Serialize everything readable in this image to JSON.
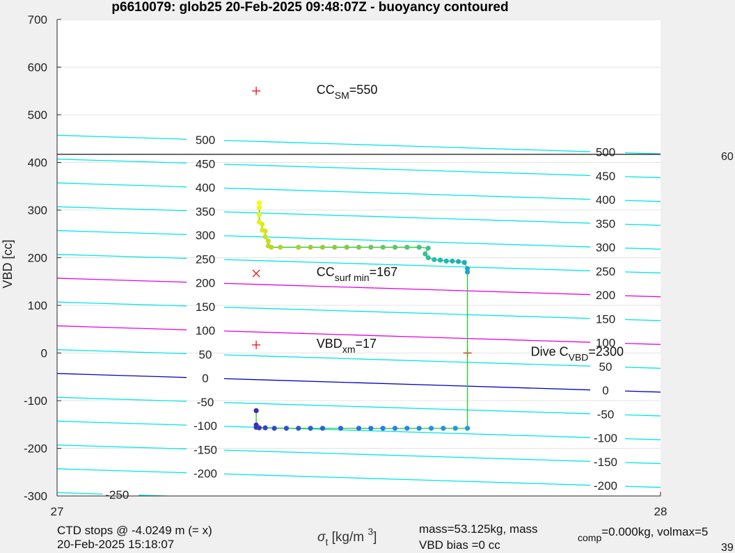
{
  "chart_data": {
    "type": "scatter",
    "title": "p6610079: glob25 20-Feb-2025 09:48:07Z - buoyancy contoured",
    "ylabel": "VBD [cc]",
    "xlabel_main": "σ",
    "xlabel_sub": "t",
    "xlabel_unit": "[kg/m",
    "xlabel_sup": "3",
    "xlabel_close": "]",
    "xlim": [
      27,
      28
    ],
    "ylim": [
      -300,
      700
    ],
    "x_ticks": [
      {
        "v": 27,
        "label": "27"
      },
      {
        "v": 28,
        "label": "28"
      }
    ],
    "y_ticks": [
      {
        "v": 700,
        "label": "700"
      },
      {
        "v": 600,
        "label": "600"
      },
      {
        "v": 500,
        "label": "500"
      },
      {
        "v": 400,
        "label": "400"
      },
      {
        "v": 300,
        "label": "300"
      },
      {
        "v": 200,
        "label": "200"
      },
      {
        "v": 100,
        "label": "100"
      },
      {
        "v": 0,
        "label": "0"
      },
      {
        "v": -100,
        "label": "-100"
      },
      {
        "v": -200,
        "label": "-200"
      },
      {
        "v": -300,
        "label": "-300"
      }
    ],
    "grid": true,
    "hline_vbd": 417,
    "contours": [
      {
        "level": 500,
        "label": "500",
        "y_left": 457,
        "y_right": 418,
        "color": "#00e5e5",
        "label_left": true,
        "label_right": true
      },
      {
        "level": 450,
        "label": "450",
        "y_left": 407,
        "y_right": 368,
        "color": "#00e5e5",
        "label_left": true,
        "label_right": true
      },
      {
        "level": 400,
        "label": "400",
        "y_left": 357,
        "y_right": 318,
        "color": "#00e5e5",
        "label_left": true,
        "label_right": true
      },
      {
        "level": 350,
        "label": "350",
        "y_left": 307,
        "y_right": 268,
        "color": "#00e5e5",
        "label_left": true,
        "label_right": true
      },
      {
        "level": 300,
        "label": "300",
        "y_left": 257,
        "y_right": 218,
        "color": "#00e5e5",
        "label_left": true,
        "label_right": true
      },
      {
        "level": 250,
        "label": "250",
        "y_left": 207,
        "y_right": 168,
        "color": "#00e5e5",
        "label_left": true,
        "label_right": true
      },
      {
        "level": 200,
        "label": "200",
        "y_left": 157,
        "y_right": 118,
        "color": "#e600e6",
        "label_left": true,
        "label_right": true
      },
      {
        "level": 150,
        "label": "150",
        "y_left": 107,
        "y_right": 68,
        "color": "#00e5e5",
        "label_left": true,
        "label_right": true
      },
      {
        "level": 100,
        "label": "100",
        "y_left": 57,
        "y_right": 18,
        "color": "#e600e6",
        "label_left": true,
        "label_right": true
      },
      {
        "level": 50,
        "label": "50",
        "y_left": 7,
        "y_right": -32,
        "color": "#00e5e5",
        "label_left": true,
        "label_right": true
      },
      {
        "level": 0,
        "label": "0",
        "y_left": -43,
        "y_right": -82,
        "color": "#0000c8",
        "label_left": true,
        "label_right": true
      },
      {
        "level": -50,
        "label": "-50",
        "y_left": -93,
        "y_right": -132,
        "color": "#00e5e5",
        "label_left": true,
        "label_right": true
      },
      {
        "level": -100,
        "label": "-100",
        "y_left": -143,
        "y_right": -182,
        "color": "#00e5e5",
        "label_left": true,
        "label_right": true
      },
      {
        "level": -150,
        "label": "-150",
        "y_left": -193,
        "y_right": -232,
        "color": "#00e5e5",
        "label_left": true,
        "label_right": true
      },
      {
        "level": -200,
        "label": "-200",
        "y_left": -243,
        "y_right": -282,
        "color": "#00e5e5",
        "label_left": true,
        "label_right": true
      },
      {
        "level": -250,
        "label": "-250",
        "y_left": -293,
        "y_right": -332,
        "color": "#00e5e5",
        "label_left": false,
        "label_right": false,
        "label_x": 27.08,
        "label_y": -297
      }
    ],
    "markers": [
      {
        "name": "cc-sm-marker",
        "symbol": "+",
        "x": 27.33,
        "y": 550,
        "label_main": "CC",
        "label_sub": "SM",
        "label_post": "=550",
        "label_x": 27.43
      },
      {
        "name": "cc-surf-min-marker",
        "symbol": "x",
        "x": 27.33,
        "y": 167,
        "label_main": "CC",
        "label_sub": "surf min",
        "label_post": "=167",
        "label_x": 27.43
      },
      {
        "name": "vbd-xm-marker",
        "symbol": "+",
        "x": 27.33,
        "y": 17,
        "label_main": "VBD",
        "label_sub": "xm",
        "label_post": "=17",
        "label_x": 27.43
      },
      {
        "name": "dive-c-vbd-marker",
        "symbol": "+",
        "x": 27.68,
        "y": 0,
        "label_main": "Dive C",
        "label_sub": "VBD",
        "label_post": "=2300",
        "label_x": 27.785
      }
    ],
    "profile_line_color": "#22cc22",
    "profile": [
      [
        27.33,
        -121
      ],
      [
        27.33,
        -151
      ],
      [
        27.33,
        -156
      ],
      [
        27.335,
        -157
      ],
      [
        27.345,
        -157
      ],
      [
        27.36,
        -158
      ],
      [
        27.38,
        -158
      ],
      [
        27.4,
        -158
      ],
      [
        27.42,
        -158
      ],
      [
        27.44,
        -158
      ],
      [
        27.47,
        -158
      ],
      [
        27.5,
        -158
      ],
      [
        27.52,
        -158
      ],
      [
        27.54,
        -158
      ],
      [
        27.56,
        -158
      ],
      [
        27.58,
        -158
      ],
      [
        27.6,
        -158
      ],
      [
        27.62,
        -158
      ],
      [
        27.64,
        -158
      ],
      [
        27.66,
        -158
      ],
      [
        27.68,
        -158
      ],
      [
        27.68,
        170
      ],
      [
        27.68,
        177
      ],
      [
        27.675,
        190
      ],
      [
        27.665,
        192
      ],
      [
        27.655,
        193
      ],
      [
        27.645,
        193
      ],
      [
        27.635,
        195
      ],
      [
        27.625,
        196
      ],
      [
        27.615,
        200
      ],
      [
        27.61,
        208
      ],
      [
        27.615,
        220
      ],
      [
        27.6,
        222
      ],
      [
        27.58,
        222
      ],
      [
        27.56,
        222
      ],
      [
        27.54,
        222
      ],
      [
        27.52,
        222
      ],
      [
        27.5,
        222
      ],
      [
        27.48,
        222
      ],
      [
        27.46,
        222
      ],
      [
        27.44,
        222
      ],
      [
        27.42,
        222
      ],
      [
        27.4,
        222
      ],
      [
        27.37,
        222
      ],
      [
        27.355,
        222
      ],
      [
        27.35,
        225
      ],
      [
        27.35,
        235
      ],
      [
        27.345,
        244
      ],
      [
        27.345,
        256
      ],
      [
        27.34,
        258
      ],
      [
        27.34,
        270
      ],
      [
        27.335,
        275
      ],
      [
        27.335,
        290
      ],
      [
        27.335,
        305
      ],
      [
        27.335,
        315
      ]
    ],
    "x_readout_right": "60",
    "annotations": {
      "ctd": "CTD stops @ -4.0249 m (= x)",
      "date": "20-Feb-2025 15:18:07",
      "mass": "mass=53.125kg, mass",
      "mass_sub": "comp",
      "mass_post": "=0.000kg, volmax=5",
      "vbd_bias": "VBD bias =0 cc",
      "corner_number": "39"
    }
  }
}
